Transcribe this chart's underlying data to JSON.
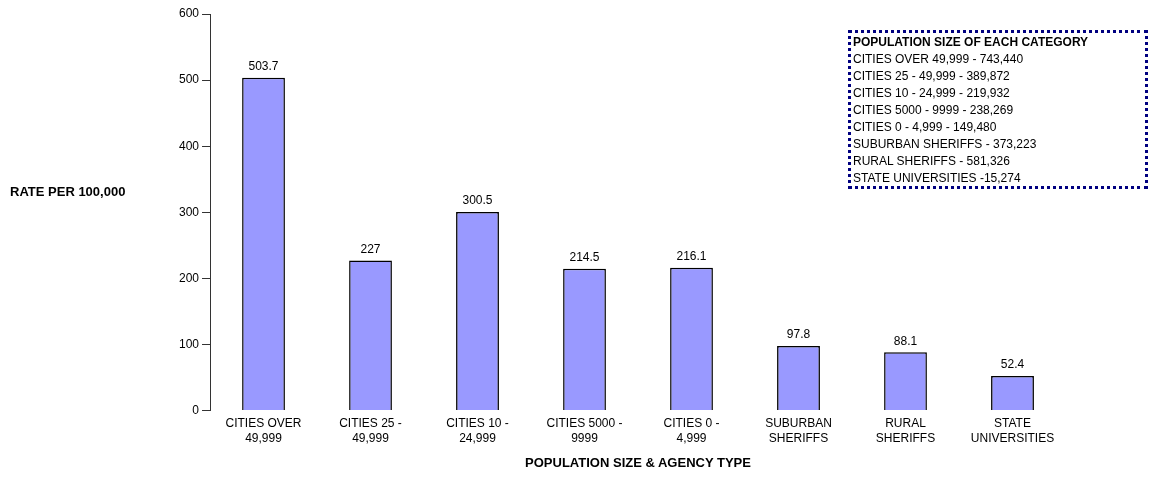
{
  "chart_data": {
    "type": "bar",
    "xlabel": "POPULATION SIZE & AGENCY TYPE",
    "ylabel": "RATE PER 100,000",
    "categories": [
      "CITIES OVER 49,999",
      "CITIES 25 - 49,999",
      "CITIES 10 - 24,999",
      "CITIES 5000 - 9999",
      "CITIES 0 - 4,999",
      "SUBURBAN SHERIFFS",
      "RURAL SHERIFFS",
      "STATE UNIVERSITIES"
    ],
    "values": [
      503.7,
      227,
      300.5,
      214.5,
      216.1,
      97.8,
      88.1,
      52.4
    ],
    "color": "#9999ff",
    "ylim": [
      0,
      600
    ],
    "yticks": [
      0,
      100,
      200,
      300,
      400,
      500,
      600
    ],
    "data_labels": true,
    "annotations": [
      "POPULATION SIZE OF EACH CATEGORY",
      "CITIES OVER 49,999 - 743,440",
      "CITIES 25 - 49,999 - 389,872",
      "CITIES 10 - 24,999 - 219,932",
      "CITIES 5000 - 9999 - 238,269",
      "CITIES 0 - 4,999 - 149,480",
      "SUBURBAN SHERIFFS - 373,223",
      "RURAL SHERIFFS - 581,326",
      "STATE UNIVERSITIES -15,274"
    ]
  }
}
